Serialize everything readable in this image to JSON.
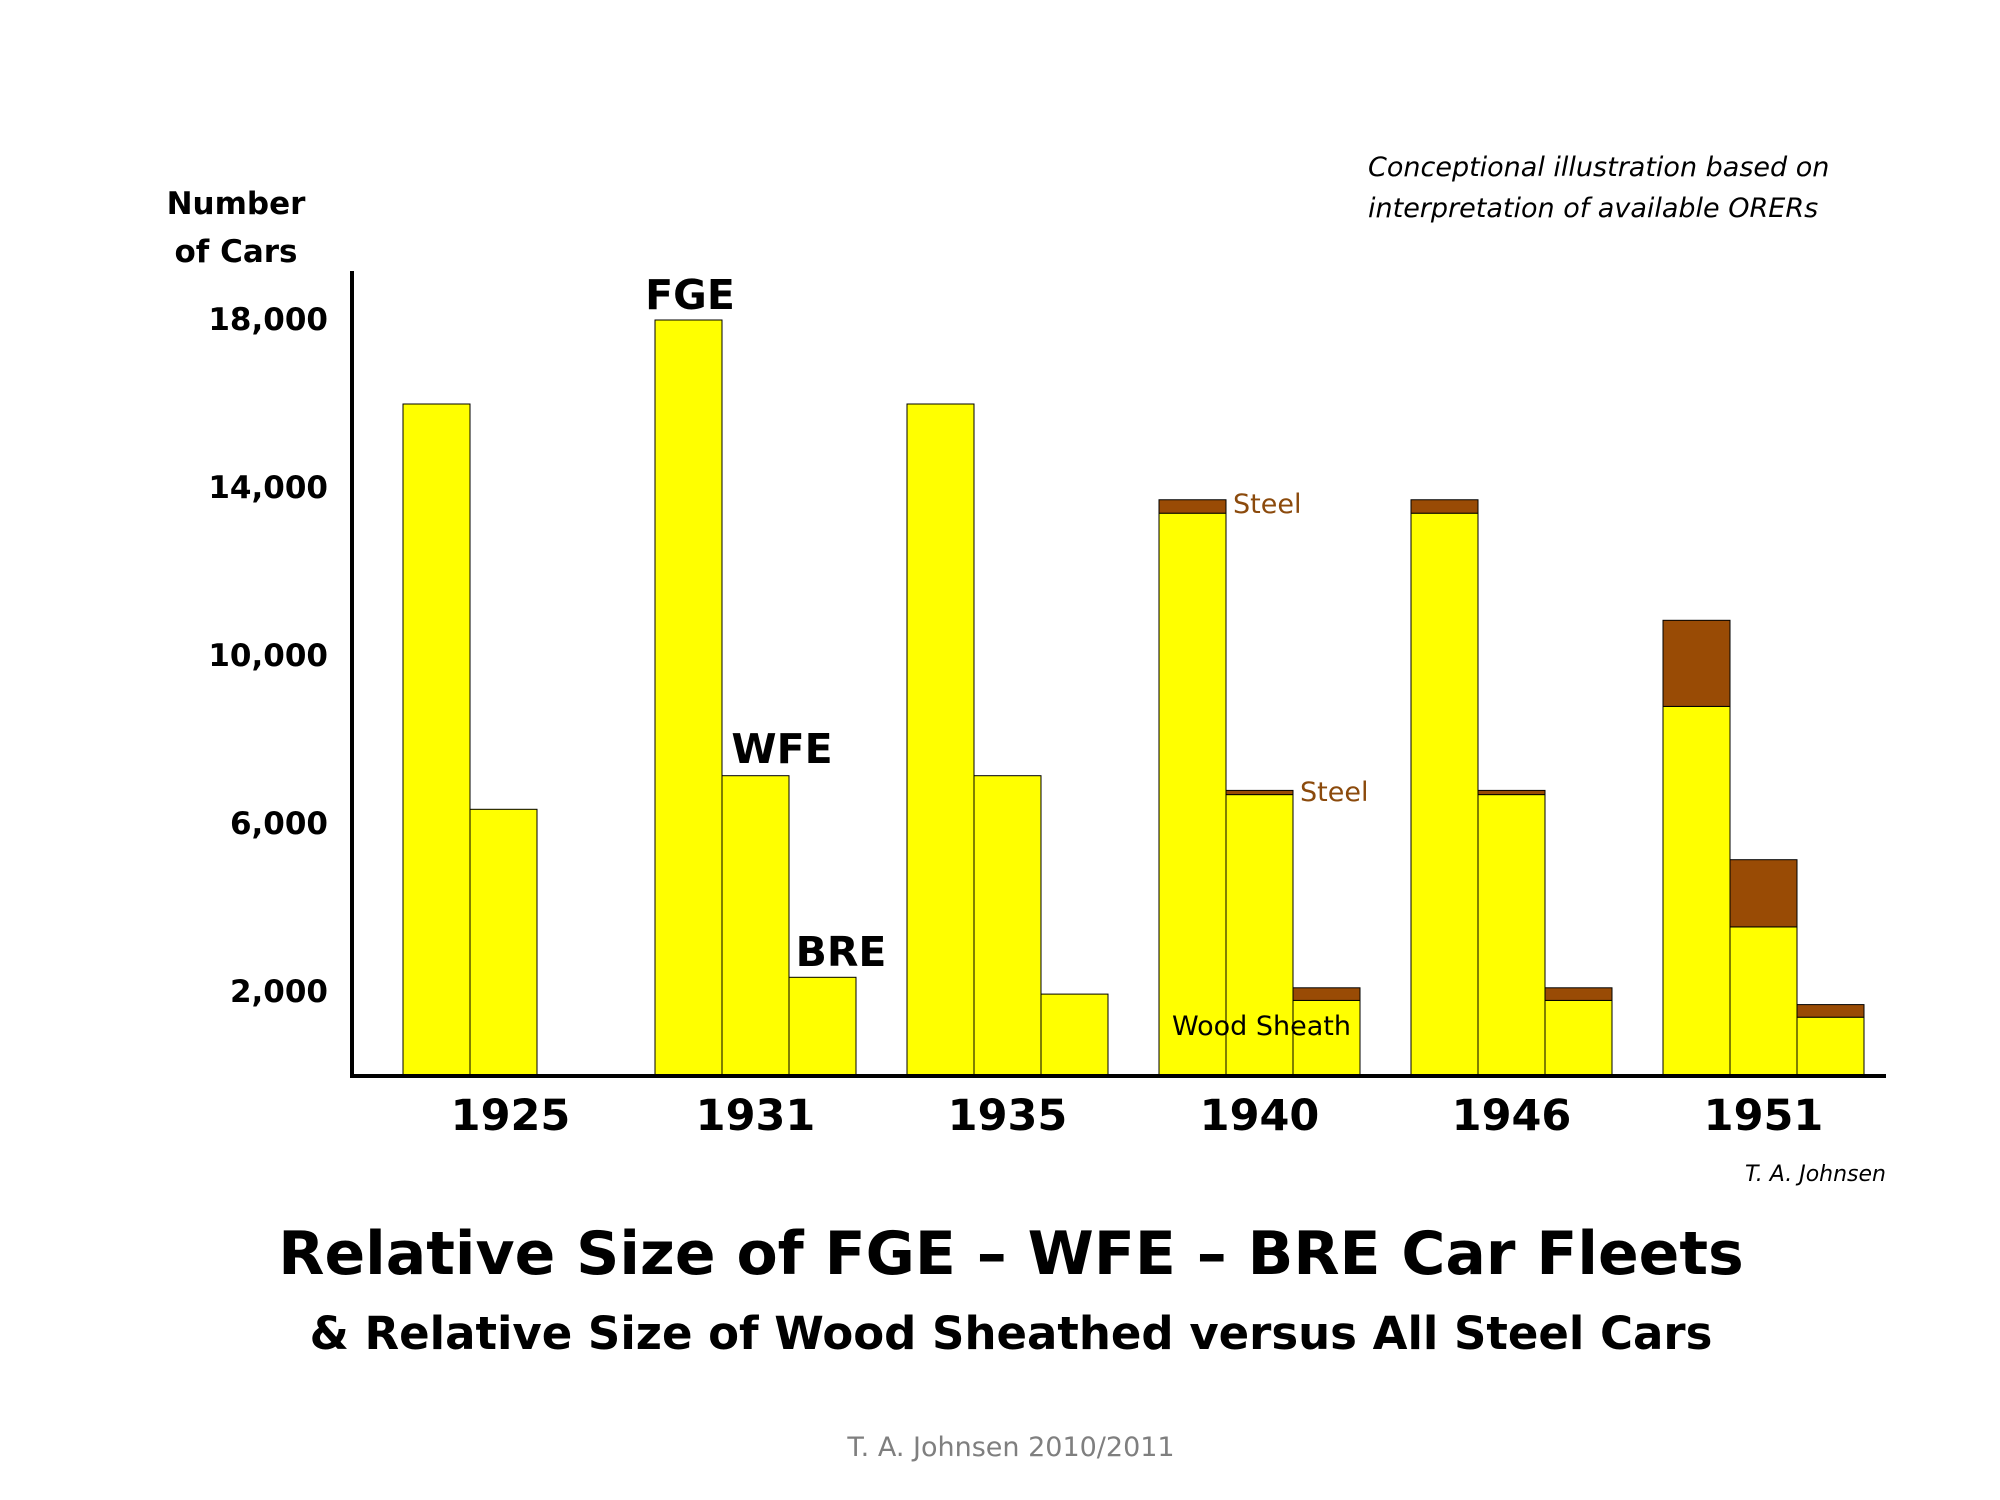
{
  "chart_data": {
    "type": "bar",
    "stacked": true,
    "title": "Relative Size of FGE – WFE – BRE Car Fleets",
    "subtitle": "& Relative Size of Wood Sheathed versus All Steel Cars",
    "ylabel_line1": "Number",
    "ylabel_line2": "of Cars",
    "yticks": [
      2000,
      6000,
      10000,
      14000,
      18000
    ],
    "ytick_labels": [
      "2,000",
      "6,000",
      "10,000",
      "14,000",
      "18,000"
    ],
    "ylim": [
      0,
      19000
    ],
    "categories": [
      "1925",
      "1931",
      "1935",
      "1940",
      "1946",
      "1951"
    ],
    "fleets": [
      "FGE",
      "WFE",
      "BRE"
    ],
    "series": [
      {
        "name": "Wood Sheath",
        "color": "#ffff00",
        "values": {
          "FGE": [
            16000,
            18000,
            16000,
            13400,
            13400,
            8800
          ],
          "WFE": [
            6350,
            7150,
            7150,
            6700,
            6700,
            3550
          ],
          "BRE": [
            0,
            2350,
            1950,
            1800,
            1800,
            1400
          ]
        }
      },
      {
        "name": "Steel",
        "color": "#994b05",
        "values": {
          "FGE": [
            0,
            0,
            0,
            320,
            320,
            2050
          ],
          "WFE": [
            0,
            0,
            0,
            100,
            100,
            1600
          ],
          "BRE": [
            0,
            0,
            0,
            300,
            300,
            300
          ]
        }
      }
    ],
    "annotations": {
      "fge_label": "FGE",
      "wfe_label": "WFE",
      "bre_label": "BRE",
      "steel_label_fge": "Steel",
      "steel_label_wfe": "Steel",
      "wood_label": "Wood Sheath",
      "note_line1": "Conceptional illustration based on",
      "note_line2": "interpretation of available ORERs",
      "author": "T. A. Johnsen"
    },
    "grid": false,
    "legend": "none"
  },
  "footer": "T. A. Johnsen 2010/2011"
}
